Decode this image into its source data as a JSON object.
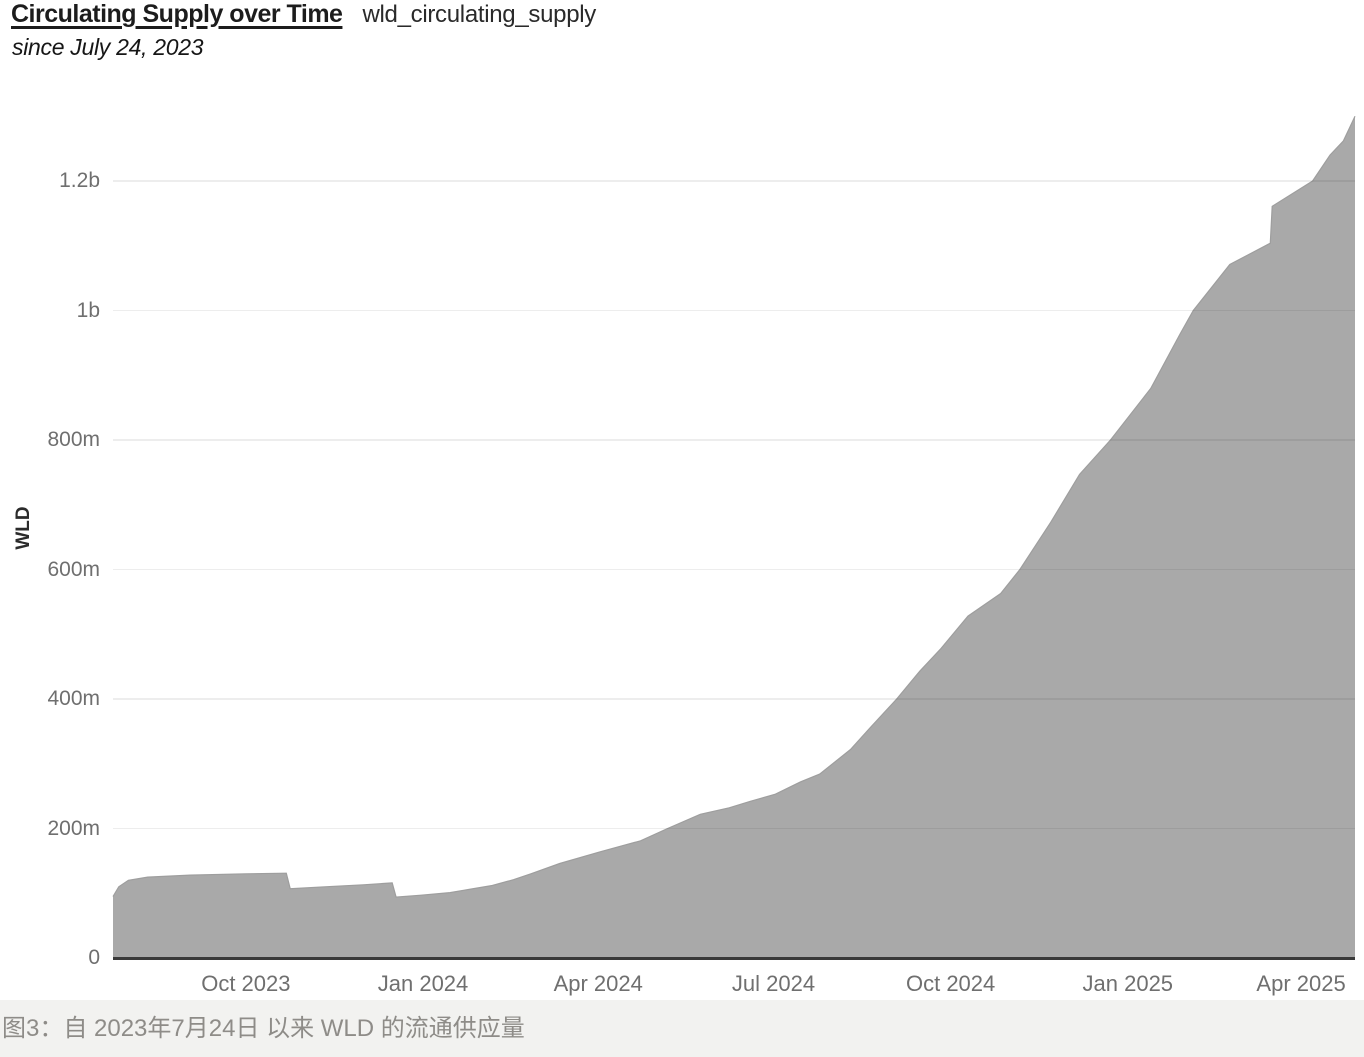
{
  "header": {
    "title": "Circulating Supply over Time",
    "metric_id": "wld_circulating_supply",
    "subtitle": "since July 24, 2023"
  },
  "caption": {
    "text": "图3：自 2023年7月24日 以来 WLD 的流通供应量"
  },
  "colors": {
    "area_fill": "#a9a9a9",
    "area_edge": "#9e9e9e",
    "gridline": "rgba(0,0,0,0.07)",
    "axis_line": "#3a3a3a",
    "tick_label": "#6f6f6f",
    "caption_bg": "#f2f2f0",
    "caption_text": "#8e8c88"
  },
  "chart_data": {
    "type": "area",
    "title": "Circulating Supply over Time",
    "subtitle": "since July 24, 2023",
    "xlabel": "",
    "ylabel": "WLD",
    "unit": "WLD tokens (values in millions)",
    "grid": "horizontal",
    "legend": "none",
    "x_range": [
      "2023-07-24",
      "2025-04-29"
    ],
    "ylim": [
      0,
      1340
    ],
    "y_ticks": [
      {
        "value": 0,
        "label": "0"
      },
      {
        "value": 200,
        "label": "200m"
      },
      {
        "value": 400,
        "label": "400m"
      },
      {
        "value": 600,
        "label": "600m"
      },
      {
        "value": 800,
        "label": "800m"
      },
      {
        "value": 1000,
        "label": "1b"
      },
      {
        "value": 1200,
        "label": "1.2b"
      }
    ],
    "x_ticks": [
      {
        "date": "2023-10-01",
        "label": "Oct 2023"
      },
      {
        "date": "2024-01-01",
        "label": "Jan 2024"
      },
      {
        "date": "2024-04-01",
        "label": "Apr 2024"
      },
      {
        "date": "2024-07-01",
        "label": "Jul 2024"
      },
      {
        "date": "2024-10-01",
        "label": "Oct 2024"
      },
      {
        "date": "2025-01-01",
        "label": "Jan 2025"
      },
      {
        "date": "2025-04-01",
        "label": "Apr 2025"
      }
    ],
    "series": [
      {
        "name": "wld_circulating_supply",
        "points": [
          [
            "2023-07-24",
            95
          ],
          [
            "2023-07-27",
            110
          ],
          [
            "2023-08-01",
            120
          ],
          [
            "2023-08-11",
            125
          ],
          [
            "2023-09-02",
            128
          ],
          [
            "2023-10-01",
            130
          ],
          [
            "2023-10-22",
            131
          ],
          [
            "2023-10-24",
            107
          ],
          [
            "2023-11-11",
            110
          ],
          [
            "2023-12-01",
            113
          ],
          [
            "2023-12-16",
            116
          ],
          [
            "2023-12-18",
            94
          ],
          [
            "2023-12-31",
            97
          ],
          [
            "2024-01-15",
            101
          ],
          [
            "2024-01-25",
            106
          ],
          [
            "2024-02-06",
            112
          ],
          [
            "2024-02-17",
            121
          ],
          [
            "2024-02-26",
            130
          ],
          [
            "2024-03-12",
            146
          ],
          [
            "2024-04-02",
            164
          ],
          [
            "2024-04-23",
            181
          ],
          [
            "2024-05-07",
            200
          ],
          [
            "2024-05-24",
            222
          ],
          [
            "2024-06-08",
            232
          ],
          [
            "2024-06-19",
            242
          ],
          [
            "2024-07-02",
            253
          ],
          [
            "2024-07-15",
            272
          ],
          [
            "2024-07-25",
            284
          ],
          [
            "2024-08-10",
            322
          ],
          [
            "2024-08-20",
            355
          ],
          [
            "2024-09-03",
            400
          ],
          [
            "2024-09-15",
            443
          ],
          [
            "2024-09-26",
            478
          ],
          [
            "2024-10-10",
            528
          ],
          [
            "2024-10-27",
            563
          ],
          [
            "2024-11-06",
            600
          ],
          [
            "2024-11-22",
            673
          ],
          [
            "2024-12-07",
            747
          ],
          [
            "2024-12-23",
            800
          ],
          [
            "2025-01-13",
            880
          ],
          [
            "2025-01-28",
            963
          ],
          [
            "2025-02-04",
            1000
          ],
          [
            "2025-02-23",
            1071
          ],
          [
            "2025-03-16",
            1104
          ],
          [
            "2025-03-17",
            1161
          ],
          [
            "2025-04-07",
            1200
          ],
          [
            "2025-04-16",
            1240
          ],
          [
            "2025-04-23",
            1262
          ],
          [
            "2025-04-29",
            1300
          ]
        ]
      }
    ]
  }
}
